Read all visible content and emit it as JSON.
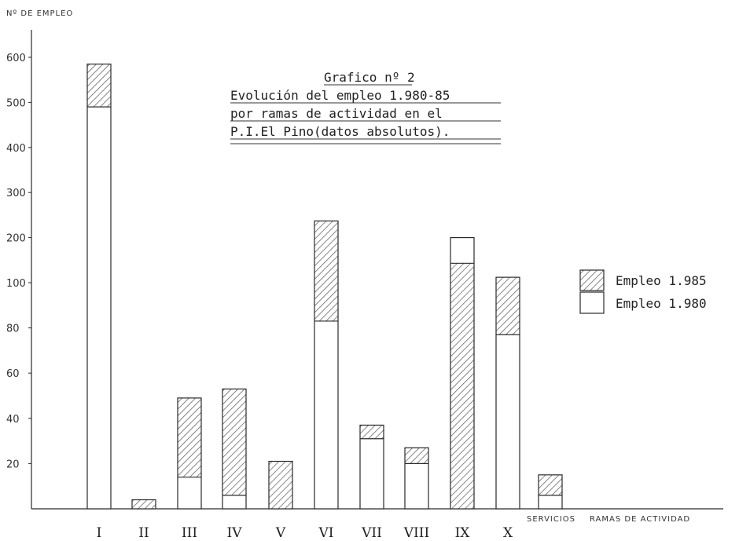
{
  "chart_data": {
    "type": "bar",
    "stacked": true,
    "title_lines": [
      "Grafico nº 2",
      "Evolución del empleo 1.980-85",
      "por ramas de actividad en el",
      "P.I.El Pino(datos absolutos)."
    ],
    "ylabel": "Nº DE EMPLEO",
    "xlabel": "RAMAS DE ACTIVIDAD",
    "categories": [
      "I",
      "II",
      "III",
      "IV",
      "V",
      "VI",
      "VII",
      "VIII",
      "IX",
      "X",
      "SERVICIOS"
    ],
    "y_ticks": [
      "600",
      "500",
      "400",
      "300",
      "200",
      "100",
      "80",
      "60",
      "40",
      "20"
    ],
    "series": [
      {
        "name": "Empleo 1.980",
        "values": [
          490,
          0,
          14,
          6,
          0,
          83,
          31,
          20,
          200,
          77,
          6
        ],
        "fill": "#ffffff"
      },
      {
        "name": "Empleo 1.985",
        "values": [
          585,
          4,
          49,
          53,
          21,
          237,
          37,
          27,
          143,
          112,
          15
        ],
        "fill": "hatch"
      }
    ],
    "grid": false,
    "legend_position": "right"
  },
  "colors": {
    "ink": "#2a2a2a",
    "hatch": "#555555",
    "background": "#ffffff"
  }
}
